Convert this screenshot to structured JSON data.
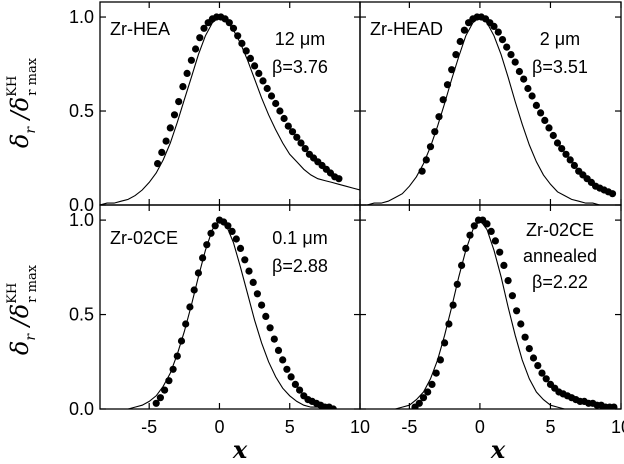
{
  "figure": {
    "ylabel": {
      "main": "δ",
      "sub1": "r",
      "slash": " /δ",
      "sup": "KH",
      "sub2": "r max"
    },
    "xlabel": "x",
    "x_ticks": [
      "-5",
      "0",
      "5",
      "10"
    ],
    "y_ticks": [
      "0.0",
      "0.5",
      "1.0"
    ]
  },
  "chart_data": [
    {
      "type": "scatter",
      "panel": "top-left",
      "sample": "Zr-HEA",
      "annotation": [
        "12 μm",
        "β=3.76"
      ],
      "xlim": [
        -8.5,
        10
      ],
      "ylim": [
        0,
        1.08
      ],
      "series": [
        {
          "kind": "points",
          "x": [
            -4.4,
            -4.1,
            -3.8,
            -3.5,
            -3.2,
            -2.9,
            -2.6,
            -2.3,
            -2.0,
            -1.7,
            -1.4,
            -1.1,
            -0.8,
            -0.5,
            -0.2,
            0.1,
            0.4,
            0.7,
            1.0,
            1.3,
            1.6,
            1.9,
            2.2,
            2.5,
            2.8,
            3.1,
            3.4,
            3.7,
            4.0,
            4.3,
            4.6,
            4.9,
            5.2,
            5.5,
            5.8,
            6.1,
            6.4,
            6.7,
            7.0,
            7.3,
            7.6,
            7.9,
            8.2,
            8.5
          ],
          "y": [
            0.22,
            0.28,
            0.34,
            0.41,
            0.48,
            0.55,
            0.63,
            0.7,
            0.77,
            0.83,
            0.89,
            0.94,
            0.97,
            0.99,
            1.0,
            1.0,
            0.99,
            0.97,
            0.94,
            0.9,
            0.86,
            0.82,
            0.78,
            0.74,
            0.7,
            0.66,
            0.62,
            0.58,
            0.54,
            0.5,
            0.46,
            0.42,
            0.39,
            0.36,
            0.33,
            0.3,
            0.27,
            0.25,
            0.23,
            0.21,
            0.19,
            0.17,
            0.15,
            0.14
          ]
        },
        {
          "kind": "line",
          "x": [
            -8.5,
            -8.0,
            -7.5,
            -7.0,
            -6.5,
            -6.0,
            -5.5,
            -5.0,
            -4.5,
            -4.0,
            -3.5,
            -3.0,
            -2.5,
            -2.0,
            -1.5,
            -1.0,
            -0.5,
            0.0,
            0.5,
            1.0,
            1.5,
            2.0,
            2.5,
            3.0,
            3.5,
            4.0,
            4.5,
            5.0,
            5.5,
            6.0,
            6.5,
            7.0,
            7.5,
            8.0,
            8.5,
            9.0,
            9.5,
            10.0
          ],
          "y": [
            0.0,
            0.01,
            0.01,
            0.02,
            0.03,
            0.05,
            0.08,
            0.12,
            0.17,
            0.24,
            0.33,
            0.44,
            0.56,
            0.68,
            0.8,
            0.9,
            0.97,
            1.0,
            0.98,
            0.93,
            0.86,
            0.77,
            0.67,
            0.57,
            0.48,
            0.4,
            0.33,
            0.27,
            0.23,
            0.19,
            0.16,
            0.14,
            0.13,
            0.12,
            0.11,
            0.1,
            0.09,
            0.08
          ]
        }
      ]
    },
    {
      "type": "scatter",
      "panel": "top-right",
      "sample": "Zr-HEAD",
      "annotation": [
        "2 μm",
        "β=3.51"
      ],
      "xlim": [
        -8.5,
        10
      ],
      "ylim": [
        0,
        1.08
      ],
      "series": [
        {
          "kind": "points",
          "x": [
            -4.1,
            -3.8,
            -3.5,
            -3.2,
            -2.9,
            -2.6,
            -2.3,
            -2.0,
            -1.7,
            -1.4,
            -1.1,
            -0.8,
            -0.5,
            -0.2,
            0.1,
            0.4,
            0.7,
            1.0,
            1.3,
            1.6,
            1.9,
            2.2,
            2.5,
            2.8,
            3.1,
            3.4,
            3.7,
            4.0,
            4.3,
            4.6,
            4.9,
            5.2,
            5.5,
            5.8,
            6.1,
            6.4,
            6.7,
            7.0,
            7.3,
            7.6,
            7.9,
            8.2,
            8.5,
            8.8,
            9.1,
            9.4
          ],
          "y": [
            0.18,
            0.24,
            0.31,
            0.39,
            0.47,
            0.56,
            0.64,
            0.72,
            0.8,
            0.87,
            0.93,
            0.97,
            0.99,
            1.0,
            1.0,
            0.99,
            0.97,
            0.95,
            0.92,
            0.88,
            0.84,
            0.8,
            0.76,
            0.71,
            0.67,
            0.62,
            0.58,
            0.53,
            0.49,
            0.45,
            0.41,
            0.37,
            0.33,
            0.3,
            0.27,
            0.24,
            0.21,
            0.18,
            0.16,
            0.14,
            0.12,
            0.1,
            0.09,
            0.08,
            0.07,
            0.06
          ]
        },
        {
          "kind": "line",
          "x": [
            -8.5,
            -8.0,
            -7.5,
            -7.0,
            -6.5,
            -6.0,
            -5.5,
            -5.0,
            -4.5,
            -4.0,
            -3.5,
            -3.0,
            -2.5,
            -2.0,
            -1.5,
            -1.0,
            -0.5,
            0.0,
            0.5,
            1.0,
            1.5,
            2.0,
            2.5,
            3.0,
            3.5,
            4.0,
            4.5,
            5.0,
            5.5,
            6.0,
            6.5,
            7.0,
            7.5,
            8.0,
            8.5,
            9.0,
            9.5,
            10.0
          ],
          "y": [
            0.0,
            0.0,
            0.01,
            0.01,
            0.02,
            0.04,
            0.06,
            0.1,
            0.15,
            0.22,
            0.31,
            0.42,
            0.54,
            0.67,
            0.79,
            0.9,
            0.97,
            1.0,
            0.97,
            0.9,
            0.8,
            0.68,
            0.55,
            0.43,
            0.32,
            0.23,
            0.16,
            0.11,
            0.07,
            0.05,
            0.03,
            0.02,
            0.01,
            0.01,
            0.0,
            0.0,
            0.0,
            0.0
          ]
        }
      ]
    },
    {
      "type": "scatter",
      "panel": "bottom-left",
      "sample": "Zr-02CE",
      "annotation": [
        "0.1 μm",
        "β=2.88"
      ],
      "xlim": [
        -8.5,
        10
      ],
      "ylim": [
        0,
        1.08
      ],
      "series": [
        {
          "kind": "points",
          "x": [
            -4.5,
            -4.2,
            -3.9,
            -3.6,
            -3.3,
            -3.0,
            -2.7,
            -2.4,
            -2.1,
            -1.8,
            -1.5,
            -1.2,
            -0.9,
            -0.6,
            -0.3,
            0.0,
            0.3,
            0.6,
            0.9,
            1.2,
            1.5,
            1.8,
            2.1,
            2.4,
            2.7,
            3.0,
            3.3,
            3.6,
            3.9,
            4.2,
            4.5,
            4.8,
            5.1,
            5.4,
            5.7,
            6.0,
            6.3,
            6.6,
            6.9,
            7.2,
            7.5,
            7.8,
            8.1
          ],
          "y": [
            0.03,
            0.06,
            0.1,
            0.15,
            0.21,
            0.28,
            0.36,
            0.45,
            0.54,
            0.63,
            0.72,
            0.8,
            0.87,
            0.93,
            0.97,
            1.0,
            0.99,
            0.97,
            0.94,
            0.9,
            0.85,
            0.79,
            0.73,
            0.67,
            0.61,
            0.55,
            0.49,
            0.43,
            0.37,
            0.31,
            0.26,
            0.21,
            0.17,
            0.13,
            0.1,
            0.07,
            0.05,
            0.04,
            0.03,
            0.02,
            0.01,
            0.01,
            0.0
          ]
        },
        {
          "kind": "line",
          "x": [
            -8.5,
            -8.0,
            -7.5,
            -7.0,
            -6.5,
            -6.0,
            -5.5,
            -5.0,
            -4.5,
            -4.0,
            -3.5,
            -3.0,
            -2.5,
            -2.0,
            -1.5,
            -1.0,
            -0.5,
            0.0,
            0.5,
            1.0,
            1.5,
            2.0,
            2.5,
            3.0,
            3.5,
            4.0,
            4.5,
            5.0,
            5.5,
            6.0,
            6.5,
            7.0,
            7.5,
            8.0,
            8.5,
            9.0,
            9.5,
            10.0
          ],
          "y": [
            0.0,
            0.0,
            0.0,
            0.0,
            0.0,
            0.01,
            0.02,
            0.04,
            0.07,
            0.12,
            0.19,
            0.29,
            0.41,
            0.55,
            0.7,
            0.84,
            0.95,
            1.0,
            0.97,
            0.88,
            0.75,
            0.61,
            0.47,
            0.35,
            0.25,
            0.17,
            0.11,
            0.07,
            0.04,
            0.02,
            0.01,
            0.01,
            0.0,
            0.0,
            0.0,
            0.0,
            0.0,
            0.0
          ]
        }
      ]
    },
    {
      "type": "scatter",
      "panel": "bottom-right",
      "sample": "Zr-02CE annealed",
      "annotation": [
        "Zr-02CE",
        "annealed",
        "β=2.22"
      ],
      "xlim": [
        -8.5,
        10
      ],
      "ylim": [
        0,
        1.08
      ],
      "series": [
        {
          "kind": "points",
          "x": [
            -4.6,
            -4.3,
            -4.0,
            -3.7,
            -3.4,
            -3.1,
            -2.8,
            -2.5,
            -2.2,
            -1.9,
            -1.6,
            -1.3,
            -1.0,
            -0.7,
            -0.4,
            -0.1,
            0.2,
            0.5,
            0.8,
            1.1,
            1.4,
            1.7,
            2.0,
            2.3,
            2.6,
            2.9,
            3.2,
            3.5,
            3.8,
            4.1,
            4.4,
            4.7,
            5.0,
            5.3,
            5.6,
            5.9,
            6.2,
            6.5,
            6.8,
            7.1,
            7.4,
            7.7,
            8.0,
            8.3,
            8.6,
            8.9,
            9.2,
            9.5
          ],
          "y": [
            0.01,
            0.03,
            0.06,
            0.09,
            0.13,
            0.19,
            0.26,
            0.35,
            0.45,
            0.55,
            0.66,
            0.76,
            0.85,
            0.92,
            0.97,
            1.0,
            1.0,
            0.98,
            0.94,
            0.89,
            0.83,
            0.76,
            0.68,
            0.6,
            0.52,
            0.45,
            0.38,
            0.32,
            0.27,
            0.23,
            0.19,
            0.16,
            0.13,
            0.11,
            0.09,
            0.08,
            0.07,
            0.06,
            0.05,
            0.04,
            0.04,
            0.03,
            0.03,
            0.02,
            0.02,
            0.01,
            0.01,
            0.01
          ]
        },
        {
          "kind": "line",
          "x": [
            -8.5,
            -8.0,
            -7.5,
            -7.0,
            -6.5,
            -6.0,
            -5.5,
            -5.0,
            -4.5,
            -4.0,
            -3.5,
            -3.0,
            -2.5,
            -2.0,
            -1.5,
            -1.0,
            -0.5,
            0.0,
            0.5,
            1.0,
            1.5,
            2.0,
            2.5,
            3.0,
            3.5,
            4.0,
            4.5,
            5.0,
            5.5,
            6.0,
            6.5,
            7.0,
            7.5,
            8.0,
            8.5,
            9.0,
            9.5,
            10.0
          ],
          "y": [
            0.0,
            0.0,
            0.0,
            0.0,
            0.0,
            0.0,
            0.01,
            0.02,
            0.05,
            0.09,
            0.16,
            0.26,
            0.39,
            0.54,
            0.7,
            0.84,
            0.95,
            1.0,
            0.95,
            0.84,
            0.7,
            0.54,
            0.39,
            0.26,
            0.16,
            0.09,
            0.05,
            0.02,
            0.01,
            0.0,
            0.0,
            0.0,
            0.0,
            0.0,
            0.0,
            0.0,
            0.0,
            0.0
          ]
        }
      ]
    }
  ]
}
